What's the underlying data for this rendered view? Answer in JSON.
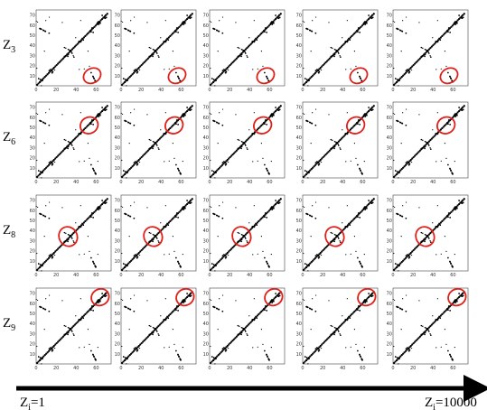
{
  "rows": [
    {
      "label": {
        "letter": "Z",
        "sub": "3"
      }
    },
    {
      "label": {
        "letter": "Z",
        "sub": "6"
      }
    },
    {
      "label": {
        "letter": "Z",
        "sub": "8"
      }
    },
    {
      "label": {
        "letter": "Z",
        "sub": "9"
      }
    }
  ],
  "x_ticks": [
    "0",
    "20",
    "40",
    "60"
  ],
  "y_ticks": [
    "10",
    "20",
    "30",
    "40",
    "50",
    "60",
    "70"
  ],
  "arrow": {
    "start": {
      "letter": "Z",
      "sub": "i",
      "rest": "=1"
    },
    "end": {
      "letter": "Z",
      "sub": "i",
      "rest": "=10000"
    }
  }
}
